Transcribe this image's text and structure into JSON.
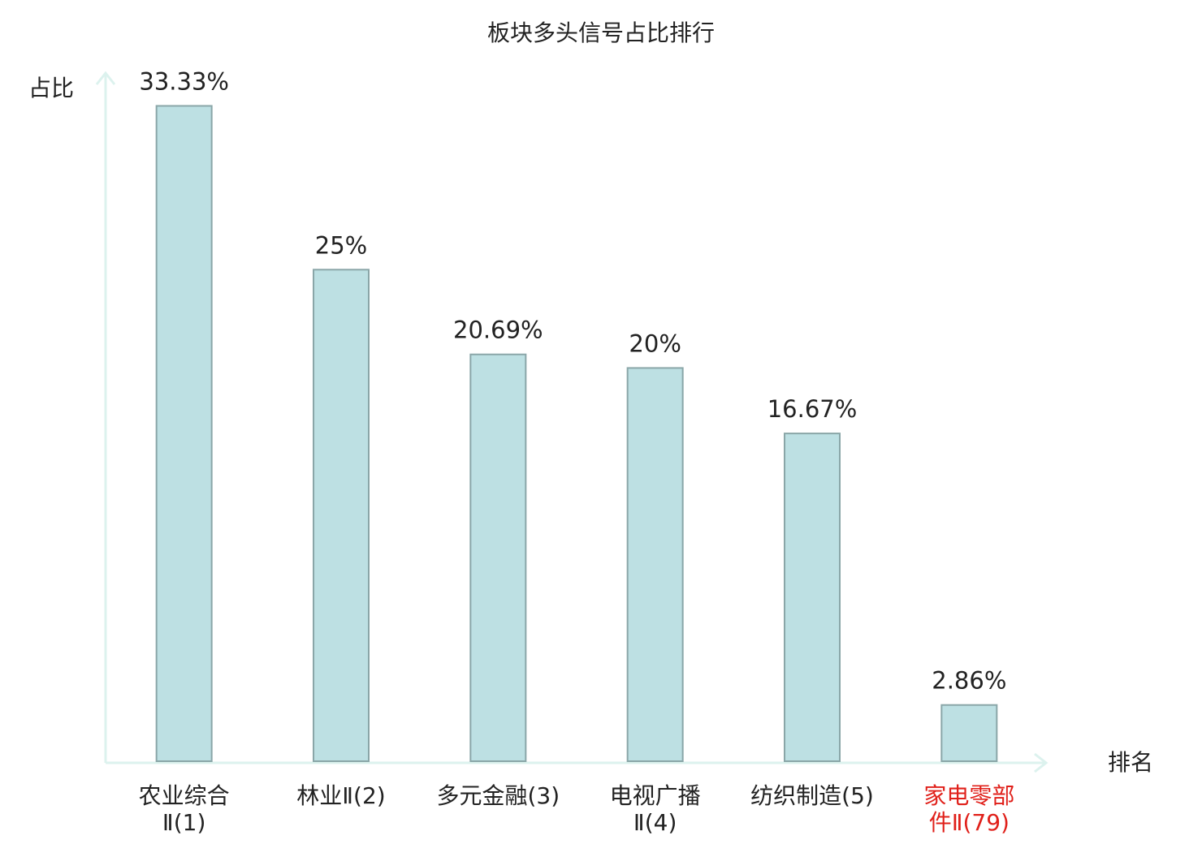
{
  "chart_data": {
    "type": "bar",
    "title": "板块多头信号占比排行",
    "y_label": "占比",
    "x_label": "排名",
    "categories": [
      "农业综合\nⅡ(1)",
      "林业Ⅱ(2)",
      "多元金融(3)",
      "电视广播\nⅡ(4)",
      "纺织制造(5)",
      "家电零部\n件Ⅱ(79)"
    ],
    "label_colors": [
      "#222222",
      "#222222",
      "#222222",
      "#222222",
      "#222222",
      "#e0201a"
    ],
    "values": [
      33.33,
      25,
      20.69,
      20,
      16.67,
      2.86
    ],
    "value_labels": [
      "33.33%",
      "25%",
      "20.69%",
      "20%",
      "16.67%",
      "2.86%"
    ],
    "color": "#bde0e3",
    "edge_color": "#8aa6a8",
    "ylim": [
      0,
      35
    ]
  }
}
